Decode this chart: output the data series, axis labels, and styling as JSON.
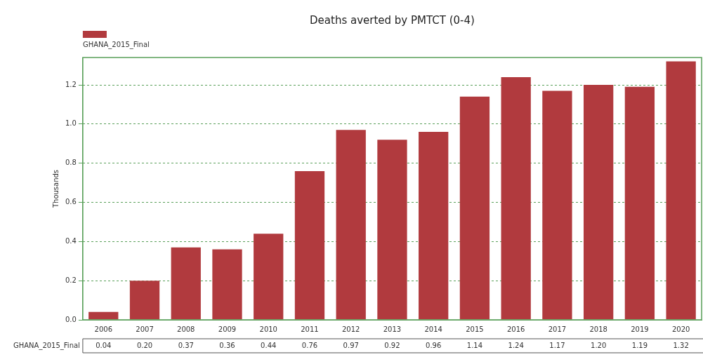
{
  "chart_data": {
    "type": "bar",
    "title": "Deaths averted by PMTCT (0-4)",
    "ylabel": "Thousands",
    "categories": [
      "2006",
      "2007",
      "2008",
      "2009",
      "2010",
      "2011",
      "2012",
      "2013",
      "2014",
      "2015",
      "2016",
      "2017",
      "2018",
      "2019",
      "2020"
    ],
    "series": [
      {
        "name": "GHANA_2015_Final",
        "color": "#b13a3e",
        "values": [
          0.04,
          0.2,
          0.37,
          0.36,
          0.44,
          0.76,
          0.97,
          0.92,
          0.96,
          1.14,
          1.24,
          1.17,
          1.2,
          1.19,
          1.32
        ],
        "value_labels": [
          "0.04",
          "0.20",
          "0.37",
          "0.36",
          "0.44",
          "0.76",
          "0.97",
          "0.92",
          "0.96",
          "1.14",
          "1.24",
          "1.17",
          "1.20",
          "1.19",
          "1.32"
        ]
      }
    ],
    "ylim": [
      0,
      1.34
    ],
    "yticks": [
      {
        "value": 0,
        "label": "0.0"
      },
      {
        "value": 0.2,
        "label": "0.2"
      },
      {
        "value": 0.4,
        "label": "0.4"
      },
      {
        "value": 0.6,
        "label": "0.6"
      },
      {
        "value": 0.8,
        "label": "0.8"
      },
      {
        "value": 1,
        "label": "1.0"
      },
      {
        "value": 1.2,
        "label": "1.2"
      }
    ],
    "grid": "y",
    "legend": "top left"
  }
}
